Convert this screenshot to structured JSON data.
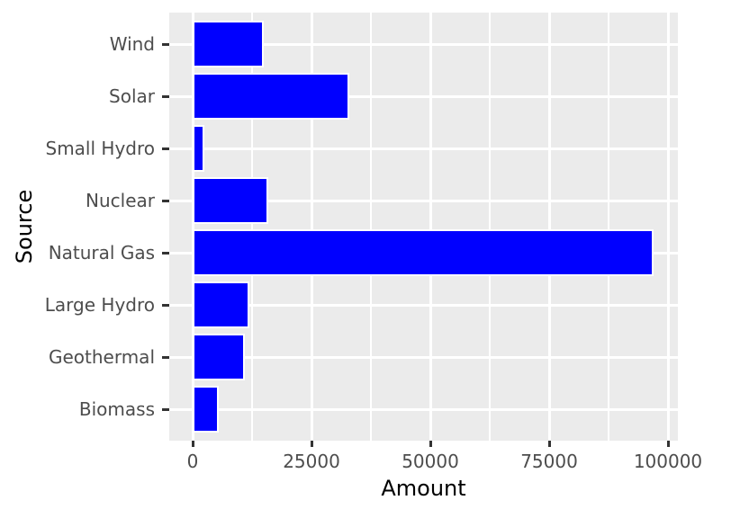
{
  "chart_data": {
    "type": "bar",
    "orientation": "horizontal",
    "style": "ggplot2",
    "title": "",
    "xlabel": "Amount",
    "ylabel": "Source",
    "categories_top_to_bottom": [
      "Wind",
      "Solar",
      "Small Hydro",
      "Nuclear",
      "Natural Gas",
      "Large Hydro",
      "Geothermal",
      "Biomass"
    ],
    "values": [
      15000,
      33000,
      2500,
      16000,
      97000,
      12000,
      11000,
      5500
    ],
    "x_ticks": [
      0,
      25000,
      50000,
      75000,
      100000
    ],
    "x_tick_labels": [
      "0",
      "25000",
      "50000",
      "75000",
      "100000"
    ],
    "x_minor_gridlines": [
      12500,
      37500,
      62500,
      87500
    ],
    "xlim": [
      -4850,
      101850
    ],
    "grid": true,
    "legend": "none",
    "colors": {
      "bar_fill": "#0000FF",
      "bar_border": "#FFFFFF",
      "panel_background": "#EBEBEB",
      "gridline": "#FFFFFF",
      "tick_mark": "#333333",
      "axis_text": "#4D4D4D",
      "axis_title": "#000000",
      "figure_background": "#FFFFFF"
    }
  }
}
